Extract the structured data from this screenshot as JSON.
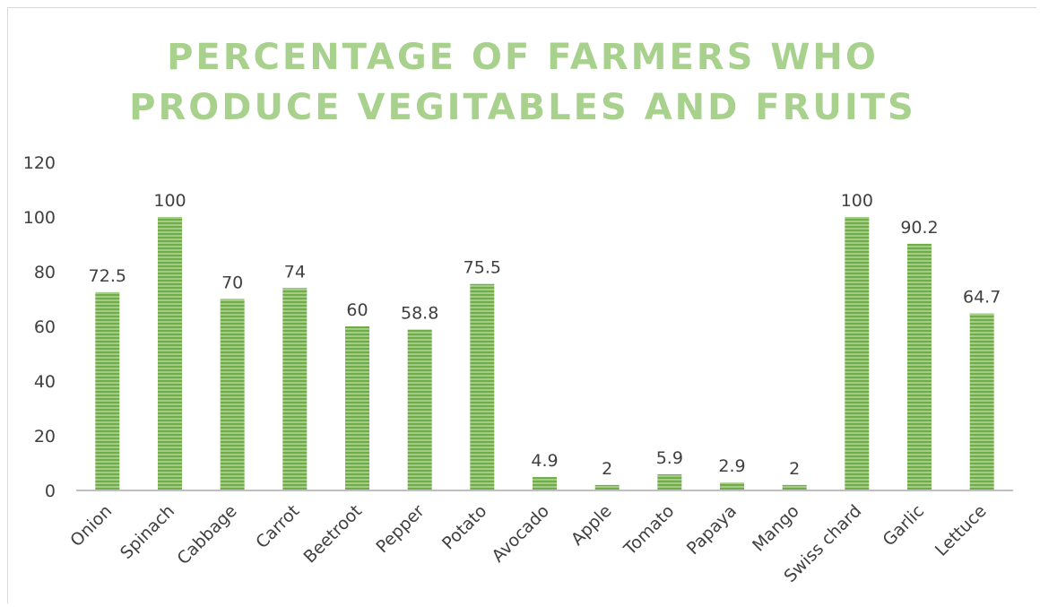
{
  "chart_data": {
    "type": "bar",
    "title_lines": [
      "PERCENTAGE OF FARMERS WHO",
      "PRODUCE VEGITABLES AND FRUITS"
    ],
    "xlabel": "",
    "ylabel": "",
    "categories": [
      "Onion",
      "Spinach",
      "Cabbage",
      "Carrot",
      "Beetroot",
      "Pepper",
      "Potato",
      "Avocado",
      "Apple",
      "Tomato",
      "Papaya",
      "Mango",
      "Swiss chard",
      "Garlic",
      "Lettuce"
    ],
    "values": [
      72.5,
      100,
      70,
      74,
      60,
      58.8,
      75.5,
      4.9,
      2,
      5.9,
      2.9,
      2,
      100,
      90.2,
      64.7
    ],
    "value_labels": [
      "72.5",
      "100",
      "70",
      "74",
      "60",
      "58.8",
      "75.5",
      "4.9",
      "2",
      "5.9",
      "2.9",
      "2",
      "100",
      "90.2",
      "64.7"
    ],
    "ylim": [
      0,
      120
    ],
    "yticks": [
      0,
      20,
      40,
      60,
      80,
      100,
      120
    ],
    "grid": false,
    "legend": "none",
    "colors": {
      "bar_fill": "#70ad47",
      "bar_stripe": "#c5e0b4",
      "title": "#a9d18e",
      "axis": "#bfbfbf",
      "text": "#404040"
    }
  }
}
